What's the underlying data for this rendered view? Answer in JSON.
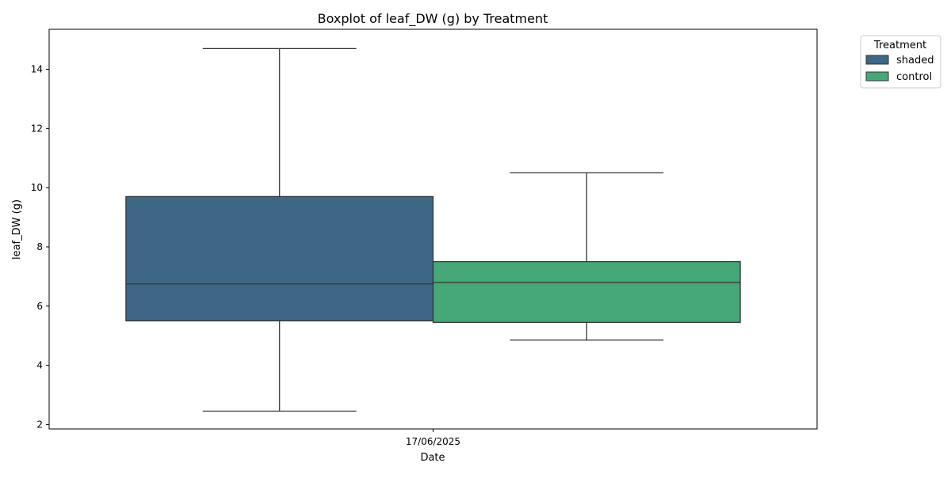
{
  "chart_data": {
    "type": "box",
    "title": "Boxplot of leaf_DW (g) by Treatment",
    "xlabel": "Date",
    "ylabel": "leaf_DW (g)",
    "categories": [
      "17/06/2025"
    ],
    "ylim": [
      1.85,
      15.35
    ],
    "yticks": [
      "2",
      "4",
      "6",
      "8",
      "10",
      "12",
      "14"
    ],
    "grid": false,
    "legend": {
      "title": "Treatment",
      "position": "outside-top-right"
    },
    "series": [
      {
        "name": "shaded",
        "color": "#3e6786",
        "stats": {
          "whisker_low": 2.45,
          "q1": 5.5,
          "median": 6.75,
          "q3": 9.7,
          "whisker_high": 14.7
        }
      },
      {
        "name": "control",
        "color": "#46a877",
        "stats": {
          "whisker_low": 4.85,
          "q1": 5.45,
          "median": 6.8,
          "q3": 7.5,
          "whisker_high": 10.5
        }
      }
    ]
  }
}
